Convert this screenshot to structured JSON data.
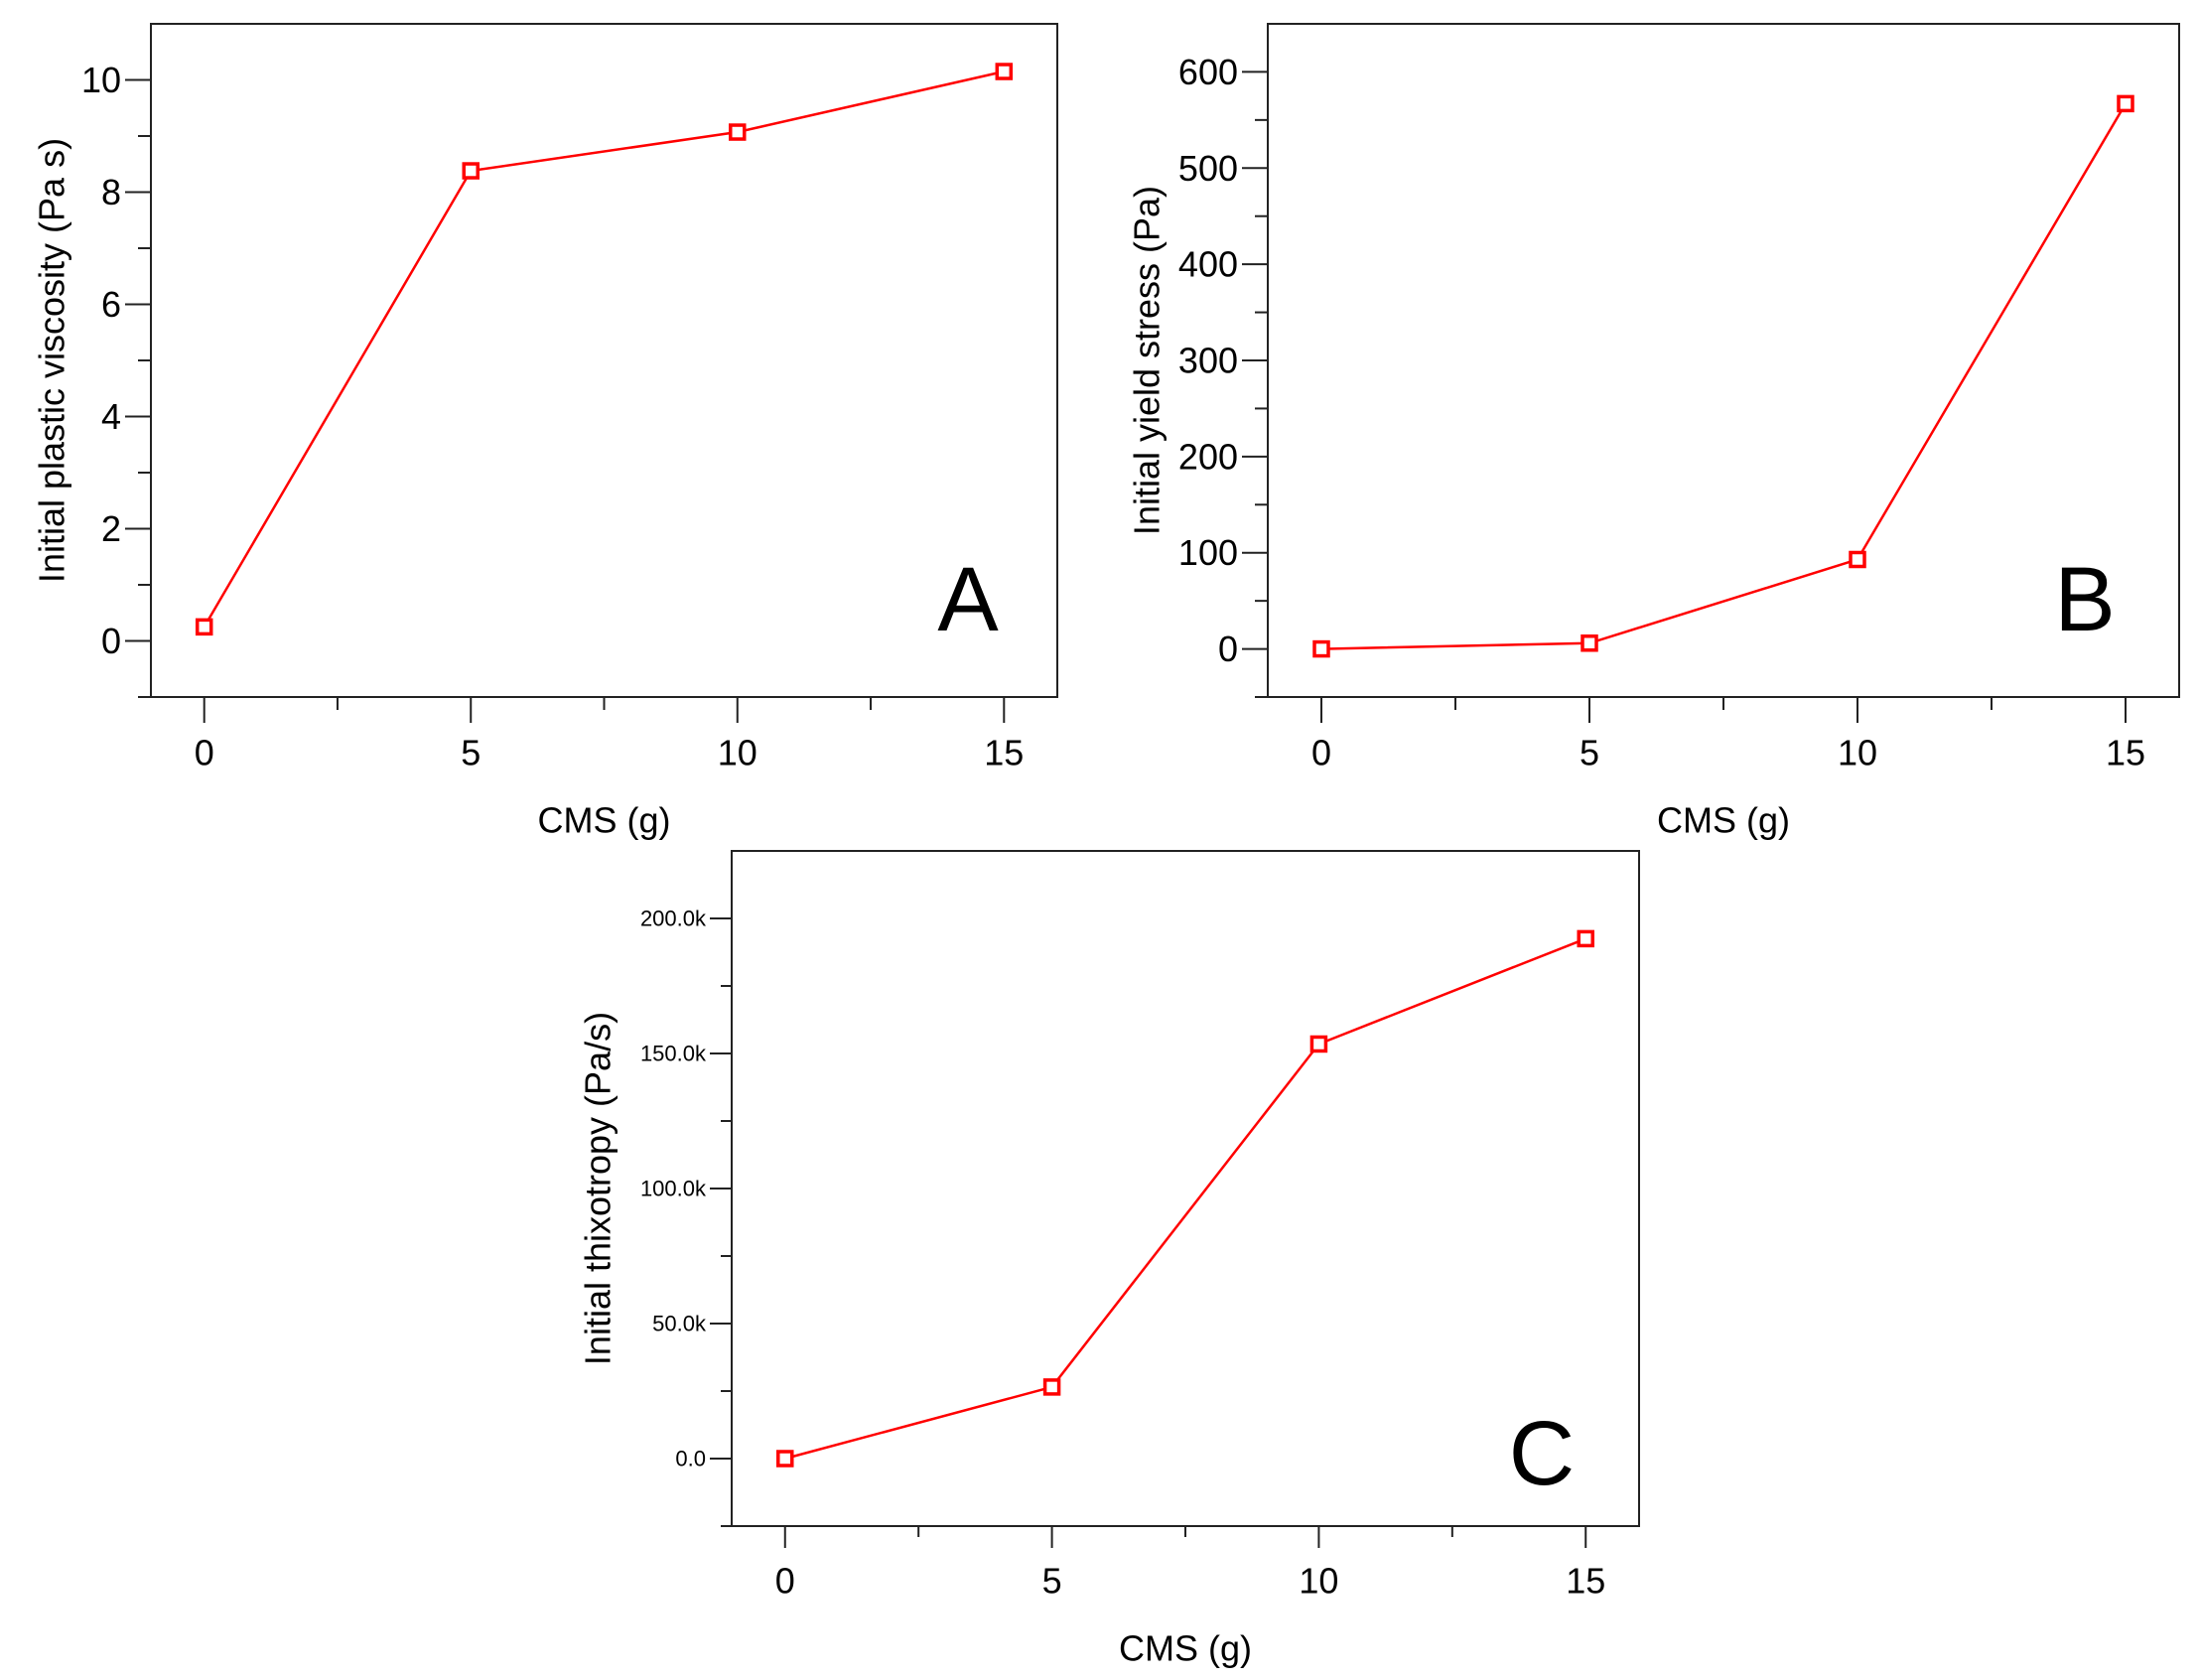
{
  "chart_data": [
    {
      "type": "line",
      "panel_label": "A",
      "x": [
        0,
        5,
        10,
        15
      ],
      "series": [
        {
          "name": "Initial plastic viscosity",
          "values": [
            0.25,
            8.38,
            9.07,
            10.15
          ],
          "color": "#ff0000"
        }
      ],
      "xlabel": "CMS (g)",
      "ylabel": "Initial plastic viscosity (Pa s)",
      "xlim": [
        -1,
        16
      ],
      "ylim": [
        -1,
        11
      ],
      "xticks": [
        0,
        5,
        10,
        15
      ],
      "xtick_labels": [
        "0",
        "5",
        "10",
        "15"
      ],
      "yticks": [
        0,
        2,
        4,
        6,
        8,
        10
      ],
      "ytick_labels": [
        "0",
        "2",
        "4",
        "6",
        "8",
        "10"
      ],
      "yminor": [
        1,
        3,
        5,
        7,
        9
      ],
      "grid": false
    },
    {
      "type": "line",
      "panel_label": "B",
      "x": [
        0,
        5,
        10,
        15
      ],
      "series": [
        {
          "name": "Initial yield stress",
          "values": [
            0,
            6,
            93,
            567
          ],
          "color": "#ff0000"
        }
      ],
      "xlabel": "CMS (g)",
      "ylabel": "Initial yield stress (Pa)",
      "xlim": [
        -1,
        16
      ],
      "ylim": [
        -50,
        650
      ],
      "xticks": [
        0,
        5,
        10,
        15
      ],
      "xtick_labels": [
        "0",
        "5",
        "10",
        "15"
      ],
      "yticks": [
        0,
        100,
        200,
        300,
        400,
        500,
        600
      ],
      "ytick_labels": [
        "0",
        "100",
        "200",
        "300",
        "400",
        "500",
        "600"
      ],
      "yminor": [
        50,
        150,
        250,
        350,
        450,
        550
      ],
      "grid": false
    },
    {
      "type": "line",
      "panel_label": "C",
      "x": [
        0,
        5,
        10,
        15
      ],
      "series": [
        {
          "name": "Initial thixotropy",
          "values": [
            0,
            26500,
            153500,
            192500
          ],
          "color": "#ff0000"
        }
      ],
      "xlabel": "CMS (g)",
      "ylabel": "Initial thixotropy (Pa/s)",
      "xlim": [
        -1,
        16
      ],
      "ylim": [
        -25000,
        225000
      ],
      "xticks": [
        0,
        5,
        10,
        15
      ],
      "xtick_labels": [
        "0",
        "5",
        "10",
        "15"
      ],
      "yticks": [
        0,
        50000,
        100000,
        150000,
        200000
      ],
      "ytick_labels": [
        "0.0",
        "50.0k",
        "100.0k",
        "150.0k",
        "200.0k"
      ],
      "yminor": [
        25000,
        75000,
        125000,
        175000
      ],
      "grid": false
    }
  ]
}
